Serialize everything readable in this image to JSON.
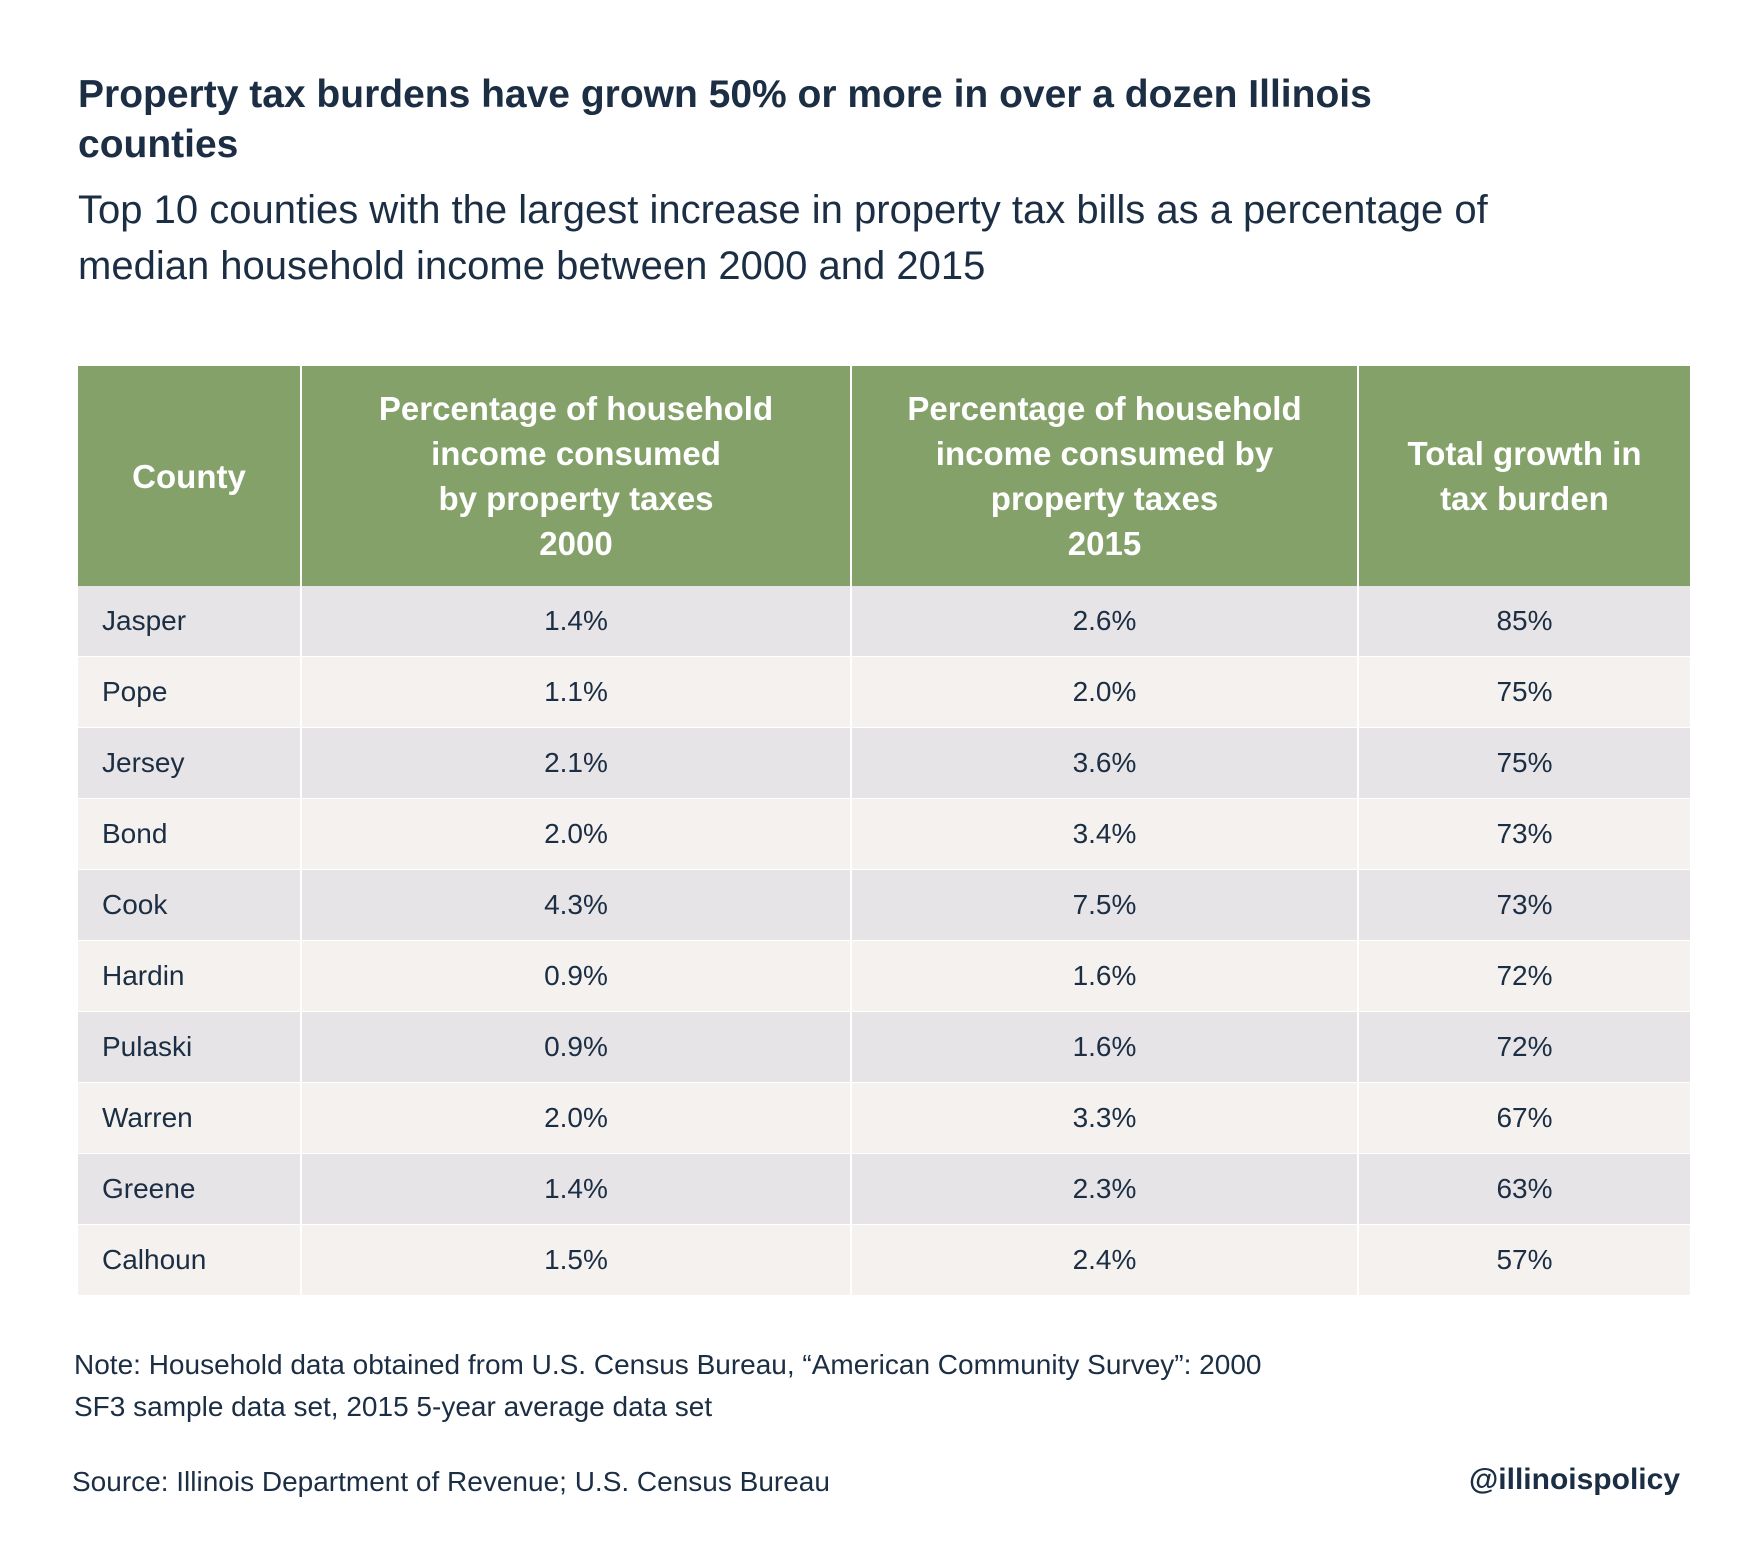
{
  "title": "Property tax burdens have grown 50% or more in over a dozen Illinois counties",
  "subtitle": "Top 10 counties with the largest increase in property tax bills as a percentage of median household income between 2000 and 2015",
  "chart_data": {
    "type": "table",
    "columns": [
      "County",
      "Percentage of household income consumed by property taxes 2000",
      "Percentage of household income consumed by property taxes 2015",
      "Total growth in tax burden"
    ],
    "rows": [
      [
        "Jasper",
        "1.4%",
        "2.6%",
        "85%"
      ],
      [
        "Pope",
        "1.1%",
        "2.0%",
        "75%"
      ],
      [
        "Jersey",
        "2.1%",
        "3.6%",
        "75%"
      ],
      [
        "Bond",
        "2.0%",
        "3.4%",
        "73%"
      ],
      [
        "Cook",
        "4.3%",
        "7.5%",
        "73%"
      ],
      [
        "Hardin",
        "0.9%",
        "1.6%",
        "72%"
      ],
      [
        "Pulaski",
        "0.9%",
        "1.6%",
        "72%"
      ],
      [
        "Warren",
        "2.0%",
        "3.3%",
        "67%"
      ],
      [
        "Greene",
        "1.4%",
        "2.3%",
        "63%"
      ],
      [
        "Calhoun",
        "1.5%",
        "2.4%",
        "57%"
      ]
    ]
  },
  "note": "Note:  Household data obtained from U.S. Census Bureau, “American Community Survey”: 2000 SF3 sample data set, 2015 5-year average data set",
  "source": "Source: Illinois Department of Revenue; U.S. Census Bureau",
  "handle": "@illinoispolicy",
  "colors": {
    "header_bg": "#84a16a",
    "row_odd": "#e6e4e6",
    "row_even": "#f4f1ef",
    "text": "#1b2e44"
  }
}
